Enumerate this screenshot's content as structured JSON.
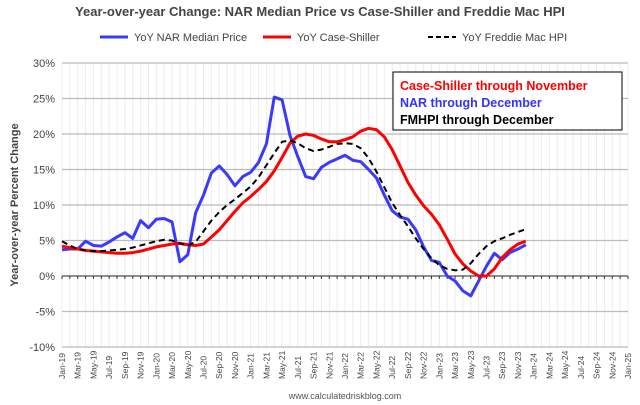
{
  "chart_data": {
    "type": "line",
    "title": "Year-over-year Change: NAR Median Price vs Case-Shiller and Freddie Mac HPI",
    "ylabel": "Year-over-year Percent Change",
    "xlabel": "",
    "source": "www.calculatedriskblog.com",
    "ylim": [
      -10,
      30
    ],
    "yticks": [
      "-10%",
      "-5%",
      "0%",
      "5%",
      "10%",
      "15%",
      "20%",
      "25%",
      "30%"
    ],
    "xticks": [
      "Jan-19",
      "Mar-19",
      "May-19",
      "Jul-19",
      "Sep-19",
      "Nov-19",
      "Jan-20",
      "Mar-20",
      "May-20",
      "Jul-20",
      "Sep-20",
      "Nov-20",
      "Jan-21",
      "Mar-21",
      "May-21",
      "Jul-21",
      "Sep-21",
      "Nov-21",
      "Jan-22",
      "Mar-22",
      "May-22",
      "Jul-22",
      "Sep-22",
      "Nov-22",
      "Jan-23",
      "Mar-23",
      "May-23",
      "Jul-23",
      "Sep-23",
      "Nov-23",
      "Jan-24",
      "Mar-24",
      "May-24",
      "Jul-24",
      "Sep-24",
      "Nov-24",
      "Jan-25"
    ],
    "x_start": "Jan-19",
    "legend_position": "top",
    "annotations": [
      {
        "text": "Case-Shiller through November",
        "color": "#ff0000"
      },
      {
        "text": "NAR through December",
        "color": "#3333ff"
      },
      {
        "text": "FMHPI through December",
        "color": "#000000"
      }
    ],
    "series": [
      {
        "name": "YoY NAR Median Price",
        "color": "#3a3aff",
        "dash": false,
        "values": [
          3.7,
          3.8,
          3.8,
          4.9,
          4.3,
          4.2,
          4.8,
          5.5,
          6.1,
          5.3,
          7.8,
          6.8,
          8.0,
          8.1,
          7.6,
          2.0,
          3.0,
          8.9,
          11.4,
          14.5,
          15.5,
          14.3,
          12.7,
          14.0,
          14.6,
          16.0,
          18.6,
          25.2,
          24.8,
          19.8,
          16.8,
          14.0,
          13.7,
          15.3,
          16.0,
          16.5,
          17.0,
          16.3,
          16.1,
          15.0,
          13.8,
          11.4,
          9.2,
          8.3,
          8.0,
          6.5,
          4.1,
          2.2,
          1.9,
          0.0,
          -0.7,
          -2.1,
          -2.8,
          -0.7,
          1.4,
          3.2,
          2.3,
          3.3,
          3.8,
          4.4
        ]
      },
      {
        "name": "YoY Case-Shiller",
        "color": "#ff0000",
        "dash": false,
        "values": [
          4.2,
          4.0,
          3.8,
          3.6,
          3.5,
          3.4,
          3.3,
          3.2,
          3.2,
          3.3,
          3.5,
          3.8,
          4.1,
          4.3,
          4.5,
          4.6,
          4.4,
          4.3,
          4.5,
          5.5,
          6.5,
          7.8,
          9.1,
          10.3,
          11.2,
          12.2,
          13.3,
          14.8,
          16.7,
          18.7,
          19.7,
          20.0,
          19.8,
          19.3,
          18.9,
          18.9,
          19.2,
          19.6,
          20.4,
          20.8,
          20.6,
          19.6,
          17.8,
          15.5,
          13.2,
          11.4,
          9.9,
          8.7,
          7.2,
          5.2,
          3.1,
          1.7,
          0.7,
          0.0,
          0.0,
          1.0,
          2.6,
          3.7,
          4.5,
          4.9
        ]
      },
      {
        "name": "YoY Freddie Mac HPI",
        "color": "#000000",
        "dash": true,
        "values": [
          4.9,
          4.3,
          3.8,
          3.6,
          3.5,
          3.5,
          3.6,
          3.7,
          3.8,
          4.0,
          4.3,
          4.6,
          4.9,
          5.1,
          5.0,
          4.6,
          4.3,
          4.8,
          6.3,
          7.8,
          9.0,
          10.0,
          10.8,
          11.7,
          12.6,
          13.9,
          15.6,
          17.3,
          18.9,
          19.1,
          18.7,
          18.0,
          17.6,
          17.8,
          18.2,
          18.6,
          18.7,
          18.6,
          18.0,
          16.6,
          14.7,
          12.5,
          10.3,
          8.6,
          7.0,
          5.3,
          3.8,
          2.5,
          1.5,
          1.0,
          0.8,
          0.9,
          1.8,
          3.1,
          4.2,
          4.9,
          5.3,
          5.8,
          6.2,
          6.6
        ]
      }
    ]
  }
}
